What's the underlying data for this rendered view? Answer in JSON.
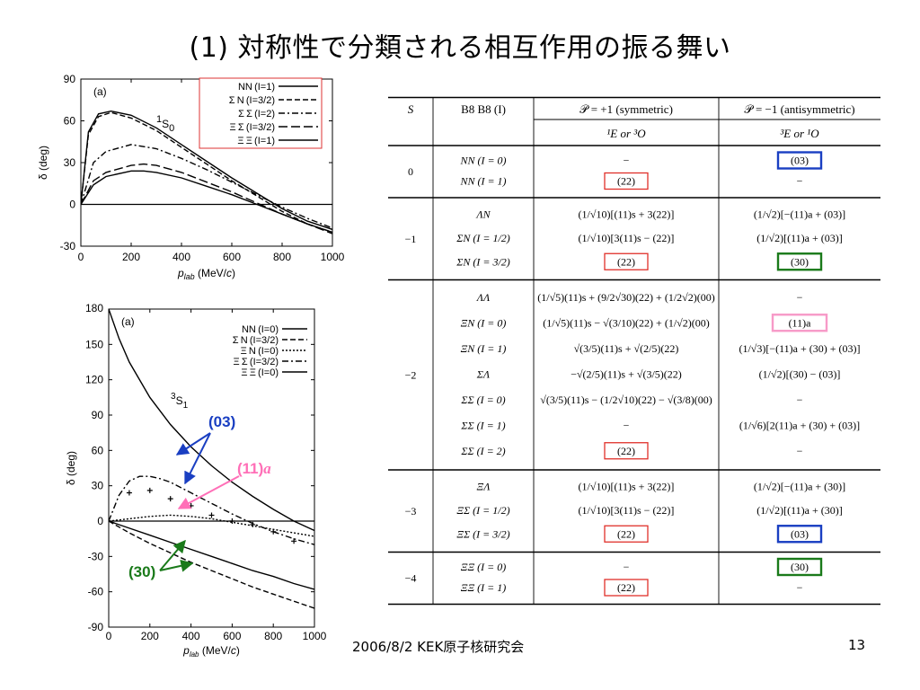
{
  "slide": {
    "title": "(1) 対称性で分類される相互作用の振る舞い",
    "footer_date": "2006/8/2  KEK原子核研究会",
    "page_number": "13"
  },
  "chart_data": [
    {
      "type": "line",
      "panel_label": "(a)",
      "wave_label": "1S0",
      "xlabel": "plab (MeV/c)",
      "ylabel": "δ (deg)",
      "xlim": [
        0,
        1000
      ],
      "ylim": [
        -30,
        90
      ],
      "xticks": [
        0,
        200,
        400,
        600,
        800,
        1000
      ],
      "yticks": [
        -30,
        0,
        30,
        60,
        90
      ],
      "legend_position": "top-right",
      "series": [
        {
          "name": "NN (I=1)",
          "dash": "solid",
          "x": [
            0,
            30,
            70,
            120,
            200,
            300,
            400,
            500,
            600,
            700,
            800,
            900,
            1000
          ],
          "y": [
            0,
            52,
            65,
            67,
            64,
            55,
            43,
            31,
            19,
            8,
            -3,
            -12,
            -18
          ]
        },
        {
          "name": "Σ N (I=3/2)",
          "dash": "dashed",
          "x": [
            0,
            30,
            70,
            120,
            200,
            300,
            400,
            500,
            600,
            700,
            800,
            900,
            1000
          ],
          "y": [
            0,
            50,
            63,
            66,
            62,
            53,
            41,
            29,
            17,
            6,
            -5,
            -14,
            -20
          ]
        },
        {
          "name": "Σ Σ (I=2)",
          "dash": "dashdot",
          "x": [
            0,
            50,
            100,
            200,
            300,
            400,
            500,
            600,
            700,
            800,
            900,
            1000
          ],
          "y": [
            0,
            30,
            38,
            43,
            40,
            33,
            25,
            16,
            7,
            -2,
            -10,
            -17
          ]
        },
        {
          "name": "Ξ Σ (I=3/2)",
          "dash": "longdash",
          "x": [
            0,
            50,
            100,
            200,
            250,
            300,
            400,
            500,
            600,
            700,
            800,
            900,
            1000
          ],
          "y": [
            0,
            17,
            23,
            28,
            29,
            28,
            23,
            16,
            9,
            1,
            -7,
            -14,
            -21
          ]
        },
        {
          "name": "Ξ Ξ (I=1)",
          "dash": "solid",
          "x": [
            0,
            50,
            100,
            200,
            250,
            300,
            400,
            500,
            600,
            700,
            800,
            900,
            1000
          ],
          "y": [
            0,
            14,
            20,
            24,
            24,
            23,
            19,
            13,
            7,
            0,
            -7,
            -14,
            -20
          ]
        }
      ]
    },
    {
      "type": "line",
      "panel_label": "(a)",
      "wave_label": "3S1",
      "xlabel": "plab (MeV/c)",
      "ylabel": "δ (deg)",
      "xlim": [
        0,
        1000
      ],
      "ylim": [
        -90,
        180
      ],
      "xticks": [
        0,
        200,
        400,
        600,
        800,
        1000
      ],
      "yticks": [
        -90,
        -60,
        -30,
        0,
        30,
        60,
        90,
        120,
        150
      ],
      "top_tick_label": "180",
      "legend_position": "top-right",
      "series": [
        {
          "name": "NN (I=0)",
          "dash": "solid",
          "x": [
            0,
            50,
            100,
            200,
            300,
            400,
            500,
            600,
            700,
            800,
            900,
            1000
          ],
          "y": [
            180,
            155,
            135,
            105,
            82,
            63,
            47,
            33,
            21,
            10,
            0,
            -8
          ]
        },
        {
          "name": "Σ N (I=3/2)",
          "dash": "dashed",
          "x": [
            0,
            100,
            200,
            300,
            400,
            500,
            600,
            700,
            800,
            900,
            1000
          ],
          "y": [
            0,
            -10,
            -19,
            -27,
            -35,
            -42,
            -49,
            -56,
            -62,
            -68,
            -74
          ]
        },
        {
          "name": "Ξ N (I=0)",
          "dash": "dotted",
          "x": [
            0,
            50,
            100,
            200,
            300,
            400,
            500,
            600,
            700,
            800,
            900,
            1000
          ],
          "y": [
            0,
            1,
            2,
            4,
            5,
            4,
            2,
            -1,
            -4,
            -7,
            -10,
            -13
          ]
        },
        {
          "name": "Ξ Σ (I=3/2)",
          "dash": "dashdot",
          "x": [
            0,
            50,
            100,
            150,
            200,
            250,
            300,
            400,
            500,
            600,
            700,
            800,
            900,
            1000
          ],
          "y": [
            0,
            22,
            34,
            38,
            38,
            36,
            33,
            24,
            15,
            6,
            -2,
            -9,
            -15,
            -20
          ]
        },
        {
          "name": "Ξ Ξ (I=0)",
          "dash": "solid",
          "x": [
            0,
            100,
            200,
            300,
            400,
            500,
            600,
            700,
            800,
            900,
            1000
          ],
          "y": [
            0,
            -6,
            -12,
            -18,
            -24,
            -30,
            -36,
            -42,
            -47,
            -53,
            -58
          ]
        }
      ],
      "data_points": {
        "x": [
          100,
          200,
          300,
          400,
          500,
          600,
          700,
          800,
          900
        ],
        "y": [
          24,
          26,
          19,
          13,
          5,
          0,
          -3,
          -9,
          -17
        ]
      },
      "annotations": [
        {
          "text": "(03)",
          "color": "#1a3fc2"
        },
        {
          "text": "(11)",
          "suffix": "a",
          "color": "#ff6fb7"
        },
        {
          "text": "(30)",
          "color": "#1a7a1a"
        }
      ]
    }
  ],
  "table": {
    "headers": {
      "s": "S",
      "pair": "B8 B8 (I)",
      "sym": "𝒫 = +1 (symmetric)",
      "anti": "𝒫 = −1 (antisymmetric)",
      "sym_sub": "¹E    or    ³O",
      "anti_sub": "³E    or    ¹O"
    },
    "groups": [
      {
        "s": "0",
        "rows": [
          {
            "pair": "NN (I = 0)",
            "sym": "−",
            "anti": "(03)",
            "anti_box": "blue"
          },
          {
            "pair": "NN (I = 1)",
            "sym": "(22)",
            "sym_box": "red",
            "anti": "−"
          }
        ]
      },
      {
        "s": "−1",
        "rows": [
          {
            "pair": "ΛN",
            "sym": "(1/√10)[(11)s + 3(22)]",
            "anti": "(1/√2)[−(11)a + (03)]"
          },
          {
            "pair": "ΣN (I = 1/2)",
            "sym": "(1/√10)[3(11)s − (22)]",
            "anti": "(1/√2)[(11)a + (03)]"
          },
          {
            "pair": "ΣN (I = 3/2)",
            "sym": "(22)",
            "sym_box": "red",
            "anti": "(30)",
            "anti_box": "green"
          }
        ]
      },
      {
        "s": "−2",
        "rows": [
          {
            "pair": "ΛΛ",
            "sym": "(1/√5)(11)s + (9/2√30)(22) + (1/2√2)(00)",
            "anti": "−"
          },
          {
            "pair": "ΞN (I = 0)",
            "sym": "(1/√5)(11)s − √(3/10)(22) + (1/√2)(00)",
            "anti": "(11)a",
            "anti_box": "pink"
          },
          {
            "pair": "ΞN (I = 1)",
            "sym": "√(3/5)(11)s + √(2/5)(22)",
            "anti": "(1/√3)[−(11)a + (30) + (03)]"
          },
          {
            "pair": "ΣΛ",
            "sym": "−√(2/5)(11)s + √(3/5)(22)",
            "anti": "(1/√2)[(30) − (03)]"
          },
          {
            "pair": "ΣΣ (I = 0)",
            "sym": "√(3/5)(11)s − (1/2√10)(22) − √(3/8)(00)",
            "anti": "−"
          },
          {
            "pair": "ΣΣ (I = 1)",
            "sym": "−",
            "anti": "(1/√6)[2(11)a + (30) + (03)]"
          },
          {
            "pair": "ΣΣ (I = 2)",
            "sym": "(22)",
            "sym_box": "red",
            "anti": "−"
          }
        ]
      },
      {
        "s": "−3",
        "rows": [
          {
            "pair": "ΞΛ",
            "sym": "(1/√10)[(11)s + 3(22)]",
            "anti": "(1/√2)[−(11)a + (30)]"
          },
          {
            "pair": "ΞΣ (I = 1/2)",
            "sym": "(1/√10)[3(11)s − (22)]",
            "anti": "(1/√2)[(11)a + (30)]"
          },
          {
            "pair": "ΞΣ (I = 3/2)",
            "sym": "(22)",
            "sym_box": "red",
            "anti": "(03)",
            "anti_box": "blue"
          }
        ]
      },
      {
        "s": "−4",
        "rows": [
          {
            "pair": "ΞΞ (I = 0)",
            "sym": "−",
            "anti": "(30)",
            "anti_box": "green"
          },
          {
            "pair": "ΞΞ (I = 1)",
            "sym": "(22)",
            "sym_box": "red",
            "anti": "−"
          }
        ]
      }
    ],
    "box_colors": {
      "red": "#e0302a",
      "blue": "#1a3fc2",
      "green": "#1a7a1a",
      "pink": "#f79ac8"
    }
  }
}
